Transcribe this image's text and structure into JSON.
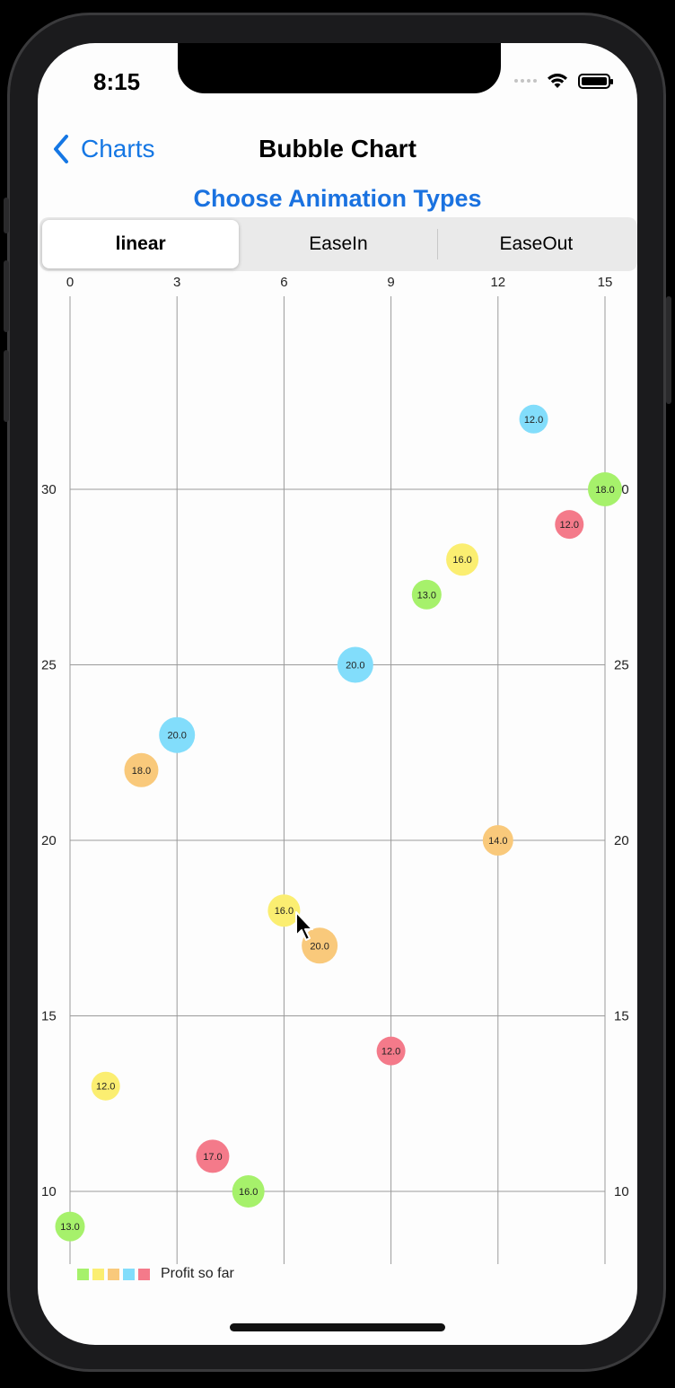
{
  "status_bar": {
    "time": "8:15"
  },
  "nav": {
    "back_label": "Charts",
    "title": "Bubble Chart"
  },
  "section_title": "Choose Animation Types",
  "segmented": {
    "options": [
      "linear",
      "EaseIn",
      "EaseOut"
    ],
    "selected": "linear"
  },
  "icons": {
    "back": "chevron-left-icon",
    "wifi": "wifi-icon",
    "battery": "battery-icon",
    "signal": "signal-icon",
    "cursor": "mouse-pointer-icon"
  },
  "colors": {
    "accent": "#1577e4",
    "green": "#a6f16b",
    "yellow": "#fbee71",
    "orange": "#f9c97b",
    "blue": "#82ddfb",
    "red": "#f47a8a"
  },
  "chart_data": {
    "type": "scatter",
    "xlim": [
      0,
      15
    ],
    "ylim": [
      6,
      33
    ],
    "x_ticks": [
      0,
      3,
      6,
      9,
      12,
      15
    ],
    "y_ticks": [
      10,
      15,
      20,
      25,
      30
    ],
    "x_axis_position": "top",
    "y_axis_labels": "left-and-right",
    "grid": true,
    "legend": {
      "label": "Profit so far",
      "position": "bottom-left",
      "colors": [
        "green",
        "yellow",
        "orange",
        "blue",
        "red"
      ]
    },
    "points": [
      {
        "x": 0,
        "y": 9,
        "size": 13.0,
        "label": "13.0",
        "color": "green"
      },
      {
        "x": 1,
        "y": 13,
        "size": 12.0,
        "label": "12.0",
        "color": "yellow"
      },
      {
        "x": 2,
        "y": 22,
        "size": 18.0,
        "label": "18.0",
        "color": "orange"
      },
      {
        "x": 3,
        "y": 23,
        "size": 20.0,
        "label": "20.0",
        "color": "blue"
      },
      {
        "x": 4,
        "y": 11,
        "size": 17.0,
        "label": "17.0",
        "color": "red"
      },
      {
        "x": 5,
        "y": 10,
        "size": 16.0,
        "label": "16.0",
        "color": "green"
      },
      {
        "x": 6,
        "y": 18,
        "size": 16.0,
        "label": "16.0",
        "color": "yellow"
      },
      {
        "x": 7,
        "y": 17,
        "size": 20.0,
        "label": "20.0",
        "color": "orange"
      },
      {
        "x": 8,
        "y": 25,
        "size": 20.0,
        "label": "20.0",
        "color": "blue"
      },
      {
        "x": 9,
        "y": 14,
        "size": 12.0,
        "label": "12.0",
        "color": "red"
      },
      {
        "x": 10,
        "y": 27,
        "size": 13.0,
        "label": "13.0",
        "color": "green"
      },
      {
        "x": 11,
        "y": 28,
        "size": 16.0,
        "label": "16.0",
        "color": "yellow"
      },
      {
        "x": 12,
        "y": 20,
        "size": 14.0,
        "label": "14.0",
        "color": "orange"
      },
      {
        "x": 13,
        "y": 32,
        "size": 12.0,
        "label": "12.0",
        "color": "blue"
      },
      {
        "x": 14,
        "y": 29,
        "size": 12.0,
        "label": "12.0",
        "color": "red"
      },
      {
        "x": 15,
        "y": 30,
        "size": 18.0,
        "label": "18.0",
        "color": "green"
      }
    ]
  }
}
